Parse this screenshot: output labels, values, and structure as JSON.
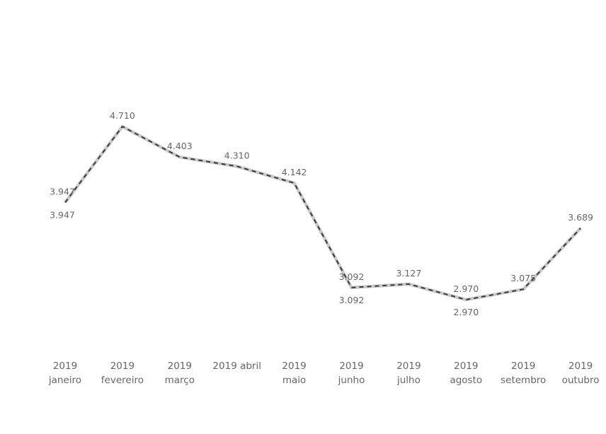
{
  "chart_data": {
    "type": "line",
    "title": "",
    "xlabel": "",
    "ylabel": "",
    "grid": false,
    "categories": [
      [
        "2019",
        "janeiro"
      ],
      [
        "2019",
        "fevereiro"
      ],
      [
        "2019",
        "março"
      ],
      [
        "2019 abril",
        ""
      ],
      [
        "2019",
        "maio"
      ],
      [
        "2019",
        "junho"
      ],
      [
        "2019",
        "julho"
      ],
      [
        "2019",
        "agosto"
      ],
      [
        "2019",
        "setembro"
      ],
      [
        "2019",
        "outubro"
      ]
    ],
    "ylim": [
      2.97,
      4.71
    ],
    "series": [
      {
        "name": "series-1",
        "values": [
          3.947,
          4.71,
          4.403,
          4.31,
          4.142,
          3.092,
          3.127,
          2.97,
          3.075,
          3.689
        ],
        "labels": [
          "3.947",
          "4.710",
          "4.403",
          "4.310",
          "4.142",
          "3.092",
          "3.127",
          "2.970",
          "3.075",
          "3.689"
        ],
        "label_position": "above",
        "color": "#c9c9c9"
      },
      {
        "name": "series-2",
        "values": [
          3.947,
          4.71,
          4.403,
          4.31,
          4.142,
          3.092,
          3.127,
          2.97,
          3.075,
          3.689
        ],
        "labels": [
          "3.947",
          null,
          null,
          null,
          null,
          "3.092",
          null,
          "2.970",
          null,
          null
        ],
        "label_position": "below",
        "color": "#3a3a3a",
        "dashed": true
      }
    ]
  }
}
